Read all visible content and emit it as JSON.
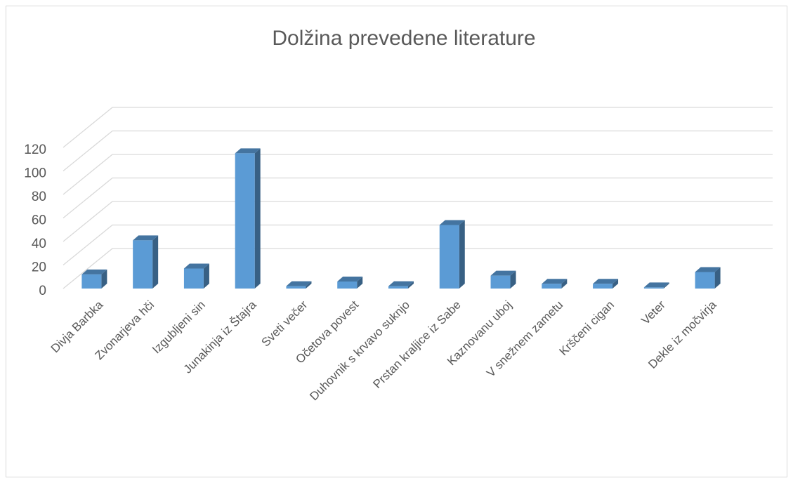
{
  "chart_data": {
    "type": "bar",
    "title": "Dolžina prevedene literature",
    "categories": [
      "Divja Barbka",
      "Zvonarjeva hči",
      "Izgubljeni sin",
      "Junakinja iz Štajra",
      "Sveti večer",
      "Očetova povest",
      "Duhovnik s krvavo suknjo",
      "Prstan kraljice iz Sabe",
      "Kaznovanu uboj",
      "V snežnem zametu",
      "Krščeni cigan",
      "Veter",
      "Dekle iz močvirja"
    ],
    "values": [
      12,
      41,
      17,
      115,
      2,
      6,
      2,
      54,
      11,
      4,
      4,
      1,
      14
    ],
    "color": "#5b9bd5",
    "ylim": [
      0,
      120
    ],
    "yticks": [
      0,
      20,
      40,
      60,
      80,
      100,
      120
    ],
    "grid": true
  }
}
